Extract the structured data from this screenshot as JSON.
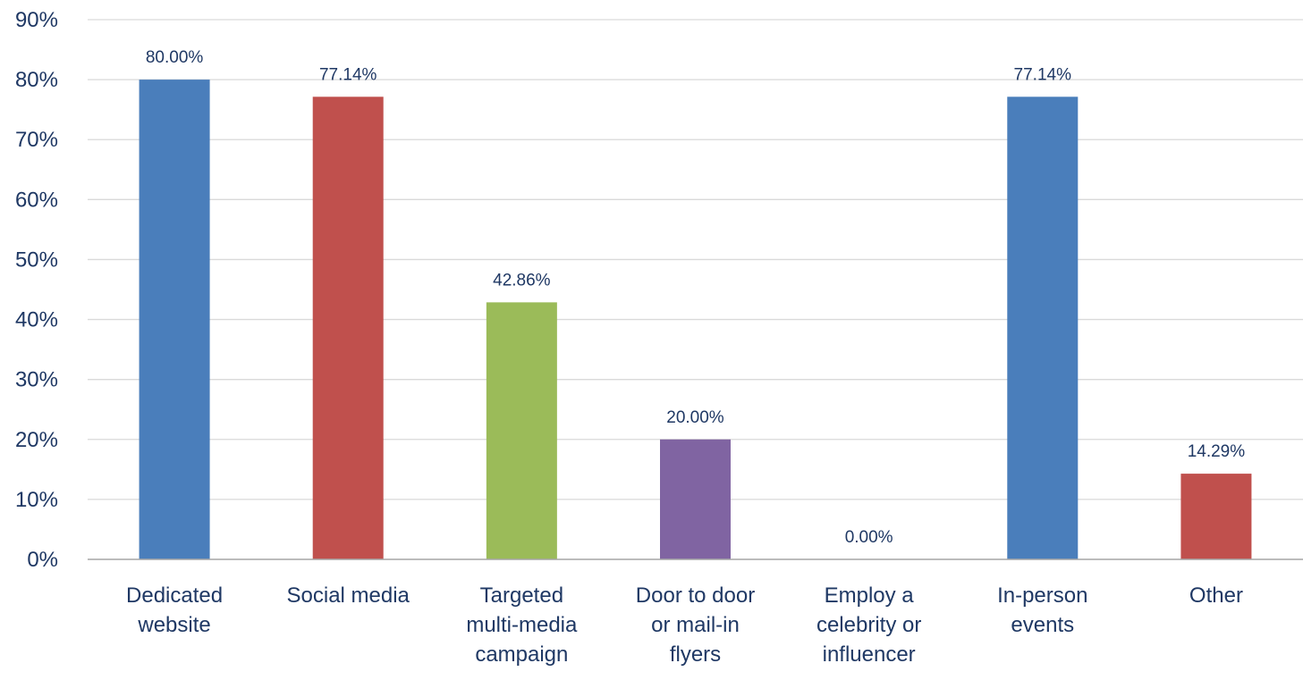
{
  "chart_data": {
    "type": "bar",
    "categories": [
      [
        "Dedicated",
        "website"
      ],
      [
        "Social media"
      ],
      [
        "Targeted",
        "multi-media",
        "campaign"
      ],
      [
        "Door to door",
        "or mail-in",
        "flyers"
      ],
      [
        "Employ a",
        "celebrity or",
        "influencer"
      ],
      [
        "In-person",
        "events"
      ],
      [
        "Other"
      ]
    ],
    "values": [
      80.0,
      77.14,
      42.86,
      20.0,
      0.0,
      77.14,
      14.29
    ],
    "data_labels": [
      "80.00%",
      "77.14%",
      "42.86%",
      "20.00%",
      "0.00%",
      "77.14%",
      "14.29%"
    ],
    "bar_colors": [
      "#4a7ebb",
      "#c0504d",
      "#9bbb59",
      "#8064a2",
      "#4a7ebb",
      "#4a7ebb",
      "#c0504d"
    ],
    "ylim": [
      0,
      90
    ],
    "y_ticks": [
      0,
      10,
      20,
      30,
      40,
      50,
      60,
      70,
      80,
      90
    ],
    "y_tick_labels": [
      "0%",
      "10%",
      "20%",
      "30%",
      "40%",
      "50%",
      "60%",
      "70%",
      "80%",
      "90%"
    ],
    "grid": true,
    "legend": "none",
    "title": "",
    "xlabel": "",
    "ylabel": ""
  }
}
